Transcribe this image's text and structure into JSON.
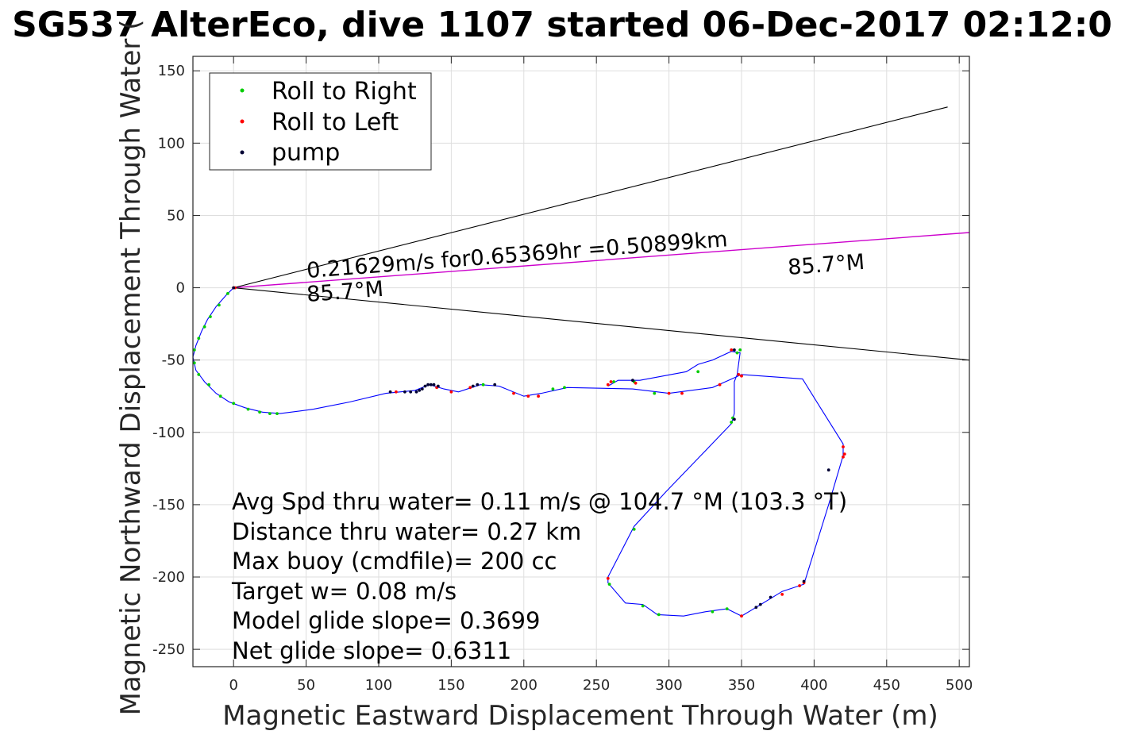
{
  "title": "SG537 AlterEco, dive 1107 started 06-Dec-2017 02:12:0",
  "colors": {
    "track": "#0000ff",
    "roll_right": "#00cc00",
    "roll_left": "#ff0000",
    "pump": "#000033",
    "heading_line": "#cc00cc",
    "cone": "#000000",
    "grid": "#dedede",
    "axes": "#262626"
  },
  "legend": {
    "items": [
      {
        "label": "Roll to Right",
        "color": "#00cc00"
      },
      {
        "label": "Roll to Left",
        "color": "#ff0000"
      },
      {
        "label": "pump",
        "color": "#000033"
      }
    ],
    "placement": "top-left"
  },
  "annotations": {
    "speed_label": "0.21629m/s for0.65369hr =0.50899km",
    "heading_left": "85.7°M",
    "heading_right": "85.7°M"
  },
  "stats": [
    "Avg Spd thru water=  0.11 m/s @ 104.7 °M (103.3 °T)",
    "Distance thru water=  0.27 km",
    "Max buoy (cmdfile)= 200 cc",
    "Target w= 0.08 m/s",
    "Model glide slope= 0.3699",
    "Net glide slope= 0.6311"
  ],
  "chart_data": {
    "type": "line",
    "title": "SG537 AlterEco, dive 1107 started 06-Dec-2017 02:12:0",
    "xlabel": "Magnetic Eastward Displacement Through Water (m)",
    "ylabel": "Magnetic Northward Displacement Through Water (",
    "xlim": [
      -28,
      507
    ],
    "ylim": [
      -262,
      160
    ],
    "xticks": [
      0,
      50,
      100,
      150,
      200,
      250,
      300,
      350,
      400,
      450,
      500
    ],
    "yticks": [
      150,
      100,
      50,
      0,
      -50,
      -100,
      -150,
      -200,
      -250
    ],
    "grid": true,
    "series": [
      {
        "name": "track",
        "style": "line",
        "points": [
          [
            0,
            0
          ],
          [
            -5,
            -5
          ],
          [
            -12,
            -13
          ],
          [
            -18,
            -22
          ],
          [
            -22,
            -30
          ],
          [
            -26,
            -40
          ],
          [
            -28,
            -48
          ],
          [
            -26,
            -57
          ],
          [
            -20,
            -65
          ],
          [
            -12,
            -73
          ],
          [
            -3,
            -79
          ],
          [
            8,
            -83
          ],
          [
            20,
            -86
          ],
          [
            32,
            -87
          ],
          [
            55,
            -84
          ],
          [
            80,
            -79
          ],
          [
            105,
            -73
          ],
          [
            125,
            -71
          ],
          [
            135,
            -67
          ],
          [
            145,
            -70
          ],
          [
            155,
            -72
          ],
          [
            170,
            -67
          ],
          [
            183,
            -68
          ],
          [
            200,
            -75
          ],
          [
            212,
            -73
          ],
          [
            230,
            -69
          ],
          [
            275,
            -70
          ],
          [
            300,
            -73
          ],
          [
            330,
            -69
          ],
          [
            350,
            -60
          ],
          [
            392,
            -63
          ],
          [
            405,
            -84
          ],
          [
            420,
            -108
          ],
          [
            420,
            -116
          ],
          [
            410,
            -150
          ],
          [
            393,
            -205
          ],
          [
            378,
            -210
          ],
          [
            360,
            -221
          ],
          [
            350,
            -227
          ],
          [
            340,
            -222
          ],
          [
            325,
            -224
          ],
          [
            310,
            -227
          ],
          [
            292,
            -226
          ],
          [
            282,
            -219
          ],
          [
            270,
            -218
          ],
          [
            258,
            -204
          ],
          [
            258,
            -200
          ],
          [
            276,
            -165
          ],
          [
            298,
            -141
          ],
          [
            321,
            -117
          ],
          [
            343,
            -94
          ],
          [
            345,
            -87
          ],
          [
            345,
            -65
          ],
          [
            347,
            -60
          ],
          [
            349,
            -45
          ],
          [
            343,
            -44
          ],
          [
            330,
            -50
          ],
          [
            320,
            -53
          ],
          [
            312,
            -58
          ],
          [
            280,
            -64
          ],
          [
            265,
            -64
          ],
          [
            258,
            -68
          ]
        ]
      },
      {
        "name": "Roll to Right",
        "style": "markers",
        "points": [
          [
            -4,
            -4
          ],
          [
            -10,
            -12
          ],
          [
            -16,
            -20
          ],
          [
            -20,
            -27
          ],
          [
            -24,
            -35
          ],
          [
            -27,
            -43
          ],
          [
            -27,
            -52
          ],
          [
            -24,
            -60
          ],
          [
            -17,
            -67
          ],
          [
            -9,
            -75
          ],
          [
            0,
            -80
          ],
          [
            10,
            -84
          ],
          [
            18,
            -86
          ],
          [
            25,
            -87
          ],
          [
            30,
            -87
          ],
          [
            172,
            -67
          ],
          [
            220,
            -70
          ],
          [
            228,
            -69
          ],
          [
            262,
            -65
          ],
          [
            276,
            -65
          ],
          [
            290,
            -73
          ],
          [
            320,
            -58
          ],
          [
            347,
            -45
          ],
          [
            349,
            -43
          ],
          [
            344,
            -90
          ],
          [
            343,
            -93
          ],
          [
            276,
            -167
          ],
          [
            259,
            -205
          ],
          [
            282,
            -220
          ],
          [
            293,
            -226
          ],
          [
            330,
            -224
          ],
          [
            340,
            -222
          ]
        ]
      },
      {
        "name": "Roll to Left",
        "style": "markers",
        "points": [
          [
            0,
            0
          ],
          [
            1,
            0
          ],
          [
            112,
            -72
          ],
          [
            140,
            -69
          ],
          [
            150,
            -72
          ],
          [
            163,
            -69
          ],
          [
            193,
            -73
          ],
          [
            203,
            -75
          ],
          [
            210,
            -75
          ],
          [
            258,
            -67
          ],
          [
            260,
            -65
          ],
          [
            277,
            -66
          ],
          [
            300,
            -73
          ],
          [
            309,
            -73
          ],
          [
            335,
            -67
          ],
          [
            343,
            -43
          ],
          [
            348,
            -60
          ],
          [
            350,
            -61
          ],
          [
            420,
            -110
          ],
          [
            421,
            -115
          ],
          [
            420,
            -117
          ],
          [
            258,
            -201
          ],
          [
            350,
            -227
          ],
          [
            378,
            -212
          ],
          [
            390,
            -206
          ],
          [
            393,
            -204
          ]
        ]
      },
      {
        "name": "pump",
        "style": "markers",
        "points": [
          [
            0,
            0
          ],
          [
            108,
            -72
          ],
          [
            118,
            -72
          ],
          [
            122,
            -72
          ],
          [
            126,
            -72
          ],
          [
            128,
            -71
          ],
          [
            130,
            -70
          ],
          [
            132,
            -68
          ],
          [
            134,
            -67
          ],
          [
            136,
            -67
          ],
          [
            138,
            -67
          ],
          [
            141,
            -68
          ],
          [
            165,
            -68
          ],
          [
            168,
            -67
          ],
          [
            180,
            -67
          ],
          [
            275,
            -64
          ],
          [
            345,
            -43
          ],
          [
            345,
            -91
          ],
          [
            410,
            -126
          ],
          [
            393,
            -203
          ],
          [
            360,
            -221
          ],
          [
            363,
            -219
          ],
          [
            370,
            -214
          ]
        ]
      },
      {
        "name": "heading",
        "style": "line",
        "points": [
          [
            0,
            0
          ],
          [
            507,
            38.2
          ]
        ]
      },
      {
        "name": "cone-upper",
        "style": "line",
        "points": [
          [
            0,
            0
          ],
          [
            492,
            125
          ]
        ]
      },
      {
        "name": "cone-lower",
        "style": "line",
        "points": [
          [
            0,
            0
          ],
          [
            507,
            -50
          ]
        ]
      }
    ]
  }
}
